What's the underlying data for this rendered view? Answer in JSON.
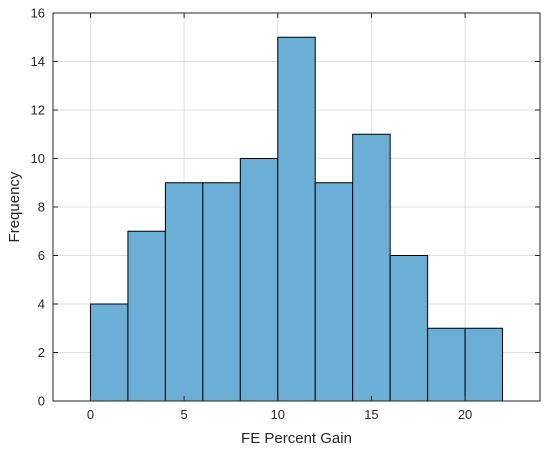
{
  "chart_data": {
    "type": "bar",
    "subtype": "histogram",
    "bin_edges": [
      0,
      2,
      4,
      6,
      8,
      10,
      12,
      14,
      16,
      18,
      20,
      22
    ],
    "values": [
      4,
      7,
      9,
      9,
      10,
      15,
      9,
      11,
      6,
      3,
      3
    ],
    "xlabel": "FE Percent Gain",
    "ylabel": "Frequency",
    "xlim": [
      -2,
      24
    ],
    "ylim": [
      0,
      16
    ],
    "xticks": [
      0,
      5,
      10,
      15,
      20
    ],
    "yticks": [
      0,
      2,
      4,
      6,
      8,
      10,
      12,
      14,
      16
    ],
    "grid": true,
    "bar_color": "#6baed6",
    "edge_color": "#000000"
  }
}
